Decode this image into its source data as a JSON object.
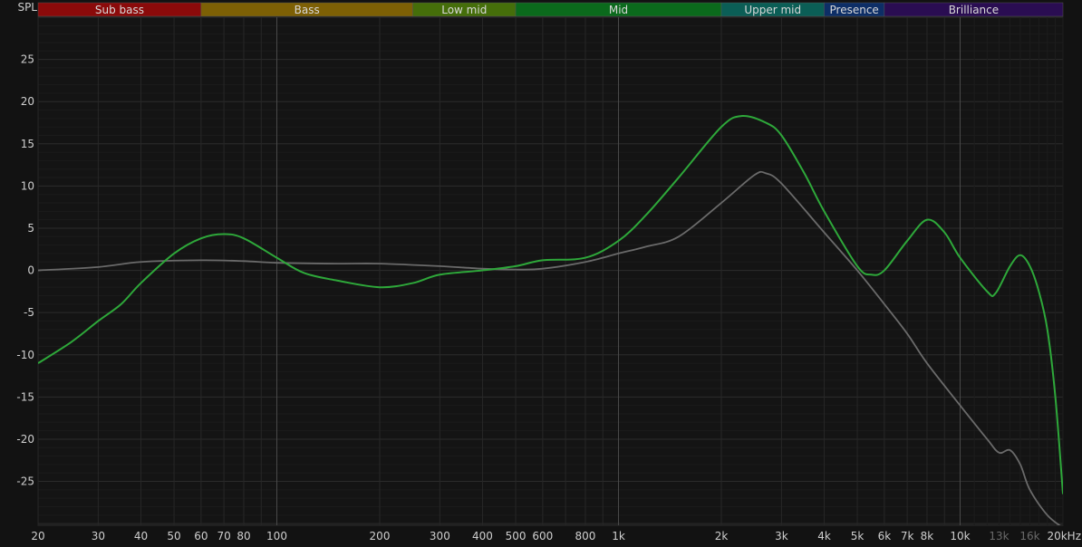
{
  "chart_data": {
    "type": "line",
    "ylabel": "SPL",
    "xlabel_unit": "kHz",
    "xscale": "log",
    "xlim": [
      20,
      20000
    ],
    "ylim": [
      -30.2,
      30
    ],
    "grid": true,
    "y_ticks": [
      25,
      20,
      15,
      10,
      5,
      0,
      -5,
      -10,
      -15,
      -20,
      -25
    ],
    "x_ticks": [
      {
        "f": 20,
        "label": "20"
      },
      {
        "f": 30,
        "label": "30"
      },
      {
        "f": 40,
        "label": "40"
      },
      {
        "f": 50,
        "label": "50"
      },
      {
        "f": 60,
        "label": "60"
      },
      {
        "f": 70,
        "label": "70"
      },
      {
        "f": 80,
        "label": "80"
      },
      {
        "f": 100,
        "label": "100"
      },
      {
        "f": 200,
        "label": "200"
      },
      {
        "f": 300,
        "label": "300"
      },
      {
        "f": 400,
        "label": "400"
      },
      {
        "f": 500,
        "label": "500"
      },
      {
        "f": 600,
        "label": "600"
      },
      {
        "f": 800,
        "label": "800"
      },
      {
        "f": 1000,
        "label": "1k"
      },
      {
        "f": 2000,
        "label": "2k"
      },
      {
        "f": 3000,
        "label": "3k"
      },
      {
        "f": 4000,
        "label": "4k"
      },
      {
        "f": 5000,
        "label": "5k"
      },
      {
        "f": 6000,
        "label": "6k"
      },
      {
        "f": 7000,
        "label": "7k"
      },
      {
        "f": 8000,
        "label": "8k"
      },
      {
        "f": 10000,
        "label": "10k"
      },
      {
        "f": 13000,
        "label": "13k",
        "dim": true
      },
      {
        "f": 16000,
        "label": "16k",
        "dim": true
      },
      {
        "f": 20000,
        "label": "20kHz"
      }
    ],
    "bands": [
      {
        "label": "Sub bass",
        "from": 20,
        "to": 60,
        "color": "#8b0a0a"
      },
      {
        "label": "Bass",
        "from": 60,
        "to": 250,
        "color": "#7d6005"
      },
      {
        "label": "Low mid",
        "from": 250,
        "to": 500,
        "color": "#456e0a"
      },
      {
        "label": "Mid",
        "from": 500,
        "to": 2000,
        "color": "#0b6a1c"
      },
      {
        "label": "Upper mid",
        "from": 2000,
        "to": 4000,
        "color": "#0b5e56"
      },
      {
        "label": "Presence",
        "from": 4000,
        "to": 6000,
        "color": "#0d2e66"
      },
      {
        "label": "Brilliance",
        "from": 6000,
        "to": 20000,
        "color": "#2a0d52"
      }
    ],
    "series": [
      {
        "color": "#6a6a6a",
        "points": [
          [
            20,
            0
          ],
          [
            30,
            0.4
          ],
          [
            40,
            1
          ],
          [
            60,
            1.2
          ],
          [
            80,
            1.1
          ],
          [
            100,
            0.9
          ],
          [
            150,
            0.8
          ],
          [
            200,
            0.8
          ],
          [
            300,
            0.5
          ],
          [
            400,
            0.2
          ],
          [
            500,
            0.1
          ],
          [
            600,
            0.2
          ],
          [
            800,
            1
          ],
          [
            1000,
            2
          ],
          [
            1200,
            2.8
          ],
          [
            1500,
            4
          ],
          [
            2000,
            8
          ],
          [
            2500,
            11.3
          ],
          [
            2700,
            11.5
          ],
          [
            3000,
            10.3
          ],
          [
            4000,
            4.5
          ],
          [
            5000,
            0
          ],
          [
            6000,
            -4
          ],
          [
            7000,
            -7.5
          ],
          [
            8000,
            -11
          ],
          [
            10000,
            -16
          ],
          [
            12000,
            -20
          ],
          [
            13000,
            -21.6
          ],
          [
            14000,
            -21.3
          ],
          [
            15000,
            -23
          ],
          [
            16000,
            -26
          ],
          [
            18000,
            -29
          ],
          [
            20000,
            -30.5
          ]
        ]
      },
      {
        "color": "#2ea83a",
        "points": [
          [
            20,
            -11
          ],
          [
            25,
            -8.5
          ],
          [
            30,
            -6
          ],
          [
            35,
            -4
          ],
          [
            40,
            -1.5
          ],
          [
            50,
            2
          ],
          [
            60,
            3.8
          ],
          [
            70,
            4.3
          ],
          [
            80,
            3.8
          ],
          [
            100,
            1.5
          ],
          [
            120,
            -0.3
          ],
          [
            150,
            -1.2
          ],
          [
            200,
            -2
          ],
          [
            250,
            -1.5
          ],
          [
            300,
            -0.5
          ],
          [
            400,
            0
          ],
          [
            500,
            0.5
          ],
          [
            600,
            1.2
          ],
          [
            800,
            1.5
          ],
          [
            1000,
            3.5
          ],
          [
            1200,
            6.5
          ],
          [
            1500,
            11
          ],
          [
            2000,
            17
          ],
          [
            2300,
            18.3
          ],
          [
            2700,
            17.5
          ],
          [
            3000,
            16
          ],
          [
            3500,
            11.5
          ],
          [
            4000,
            7
          ],
          [
            5000,
            0.5
          ],
          [
            5500,
            -0.5
          ],
          [
            6000,
            0
          ],
          [
            7000,
            3.5
          ],
          [
            8000,
            6
          ],
          [
            9000,
            4.5
          ],
          [
            10000,
            1.5
          ],
          [
            12000,
            -2.5
          ],
          [
            12700,
            -2.7
          ],
          [
            14000,
            0.5
          ],
          [
            15000,
            1.8
          ],
          [
            16000,
            0.5
          ],
          [
            17000,
            -2.5
          ],
          [
            18000,
            -7
          ],
          [
            19000,
            -15
          ],
          [
            20000,
            -26.5
          ]
        ]
      }
    ]
  }
}
